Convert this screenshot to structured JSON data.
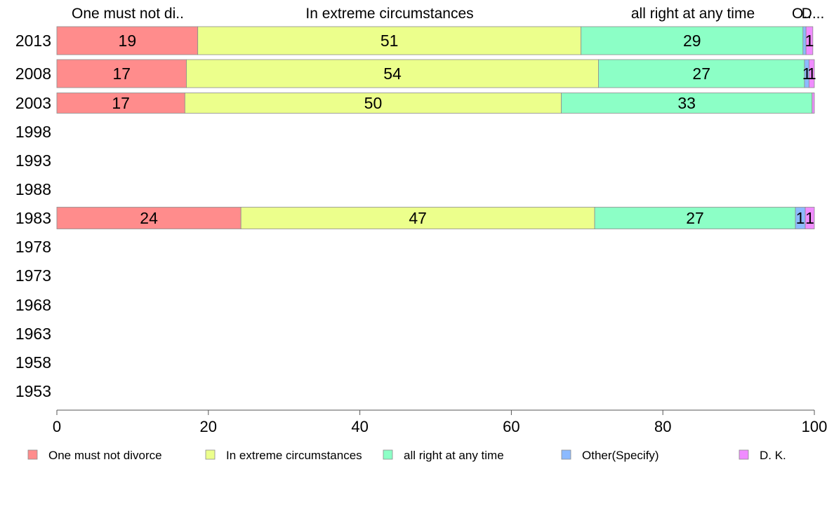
{
  "chart_data": {
    "type": "bar",
    "orientation": "horizontal",
    "stacked": true,
    "categories": [
      "2013",
      "2008",
      "2003",
      "1998",
      "1993",
      "1988",
      "1983",
      "1978",
      "1973",
      "1968",
      "1963",
      "1958",
      "1953"
    ],
    "series": [
      {
        "name": "One must not divorce",
        "color": "#ff8c8c",
        "values": [
          18.6,
          17.1,
          16.9,
          null,
          null,
          null,
          24.3,
          null,
          null,
          null,
          null,
          null,
          null
        ]
      },
      {
        "name": "In extreme circumstances",
        "color": "#ecff8c",
        "values": [
          50.6,
          54.4,
          49.7,
          null,
          null,
          null,
          46.7,
          null,
          null,
          null,
          null,
          null,
          null
        ]
      },
      {
        "name": "all right at any time",
        "color": "#8cffc6",
        "values": [
          29.3,
          27.2,
          33.1,
          null,
          null,
          null,
          26.5,
          null,
          null,
          null,
          null,
          null,
          null
        ]
      },
      {
        "name": "Other(Specify)",
        "color": "#8cbaff",
        "values": [
          0.4,
          0.6,
          0.0,
          null,
          null,
          null,
          1.3,
          null,
          null,
          null,
          null,
          null,
          null
        ]
      },
      {
        "name": "D. K.",
        "color": "#f08cff",
        "values": [
          0.9,
          0.7,
          0.3,
          null,
          null,
          null,
          1.2,
          null,
          null,
          null,
          null,
          null,
          null
        ]
      }
    ],
    "value_labels": [
      [
        "19",
        "51",
        "29",
        "",
        "1"
      ],
      [
        "17",
        "54",
        "27",
        "1",
        "1"
      ],
      [
        "17",
        "50",
        "33",
        "",
        ""
      ],
      null,
      null,
      null,
      [
        "24",
        "47",
        "27",
        "1",
        "1"
      ],
      null,
      null,
      null,
      null,
      null,
      null
    ],
    "top_labels": [
      "One must not di..",
      "In extreme circumstances",
      "all right at any time",
      "O..",
      "D..."
    ],
    "xlim": [
      0,
      100
    ],
    "xticks": [
      0,
      20,
      40,
      60,
      80,
      100
    ],
    "xlabel": "",
    "ylabel": "",
    "title": "",
    "grid": false,
    "legend": {
      "position": "bottom",
      "entries": [
        "One must not divorce",
        "In extreme circumstances",
        "all right at any time",
        "Other(Specify)",
        "D. K."
      ]
    }
  }
}
